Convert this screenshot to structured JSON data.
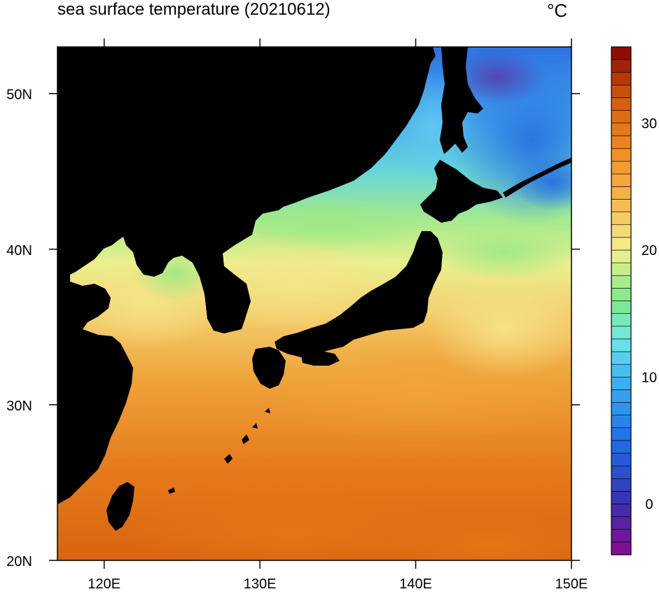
{
  "title": "sea surface temperature (20210612)",
  "units": "°C",
  "map": {
    "lon_range": [
      117,
      150
    ],
    "lat_range": [
      20,
      53
    ],
    "x_ticks": [
      {
        "value": 120,
        "label": "120E"
      },
      {
        "value": 130,
        "label": "130E"
      },
      {
        "value": 140,
        "label": "140E"
      },
      {
        "value": 150,
        "label": "150E"
      }
    ],
    "y_ticks": [
      {
        "value": 20,
        "label": "20N"
      },
      {
        "value": 30,
        "label": "30N"
      },
      {
        "value": 40,
        "label": "40N"
      },
      {
        "value": 50,
        "label": "50N"
      }
    ],
    "land_color": "#000000"
  },
  "colorbar": {
    "min": -4,
    "max": 36,
    "step": 1,
    "ticks": [
      {
        "value": 0,
        "label": "0"
      },
      {
        "value": 10,
        "label": "10"
      },
      {
        "value": 20,
        "label": "20"
      },
      {
        "value": 30,
        "label": "30"
      }
    ],
    "color_stops": [
      {
        "value": -4,
        "color": "#8a0b8f"
      },
      {
        "value": 0,
        "color": "#3a2fb0"
      },
      {
        "value": 5,
        "color": "#1e6ee8"
      },
      {
        "value": 10,
        "color": "#3fb6f2"
      },
      {
        "value": 13,
        "color": "#6fe8e6"
      },
      {
        "value": 16,
        "color": "#7ee88a"
      },
      {
        "value": 20,
        "color": "#f4f08e"
      },
      {
        "value": 24,
        "color": "#f5b64a"
      },
      {
        "value": 28,
        "color": "#ee8a22"
      },
      {
        "value": 32,
        "color": "#d25a0c"
      },
      {
        "value": 36,
        "color": "#860000"
      }
    ]
  }
}
